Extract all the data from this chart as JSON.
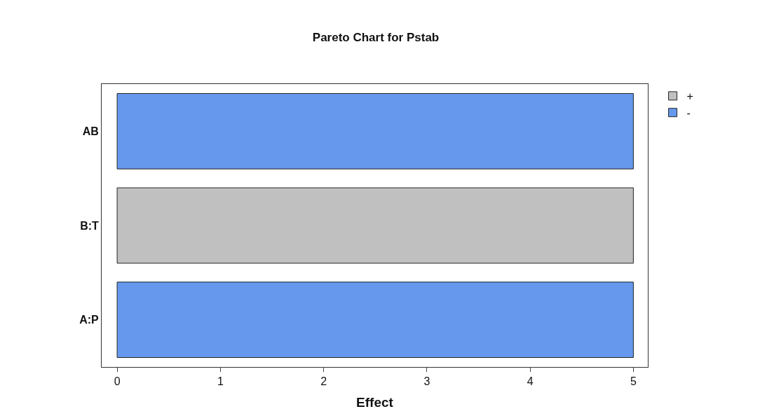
{
  "chart_data": {
    "type": "bar",
    "title": "Pareto Chart for Pstab",
    "xlabel": "Effect",
    "orientation": "horizontal",
    "stacked": true,
    "categories": [
      "AB",
      "B:T",
      "A:P"
    ],
    "series": [
      {
        "name": "+",
        "color": "#c0c0c0",
        "values": [
          null,
          5,
          null
        ]
      },
      {
        "name": "-",
        "color": "#6699ee",
        "values": [
          5,
          null,
          5
        ]
      }
    ],
    "xlim": [
      -0.15,
      5.14
    ],
    "xticks": [
      0,
      1,
      2,
      3,
      4,
      5
    ],
    "legend": "top right"
  }
}
